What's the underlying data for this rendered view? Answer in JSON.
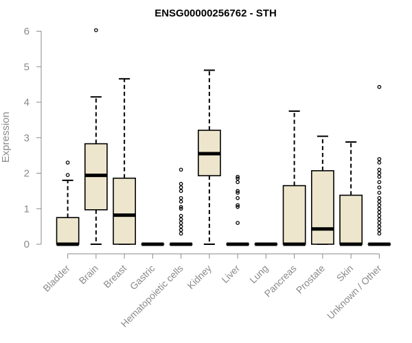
{
  "chart_data": {
    "type": "boxplot",
    "title": "ENSG00000256762 - STH",
    "xlabel": "",
    "ylabel": "Expression",
    "ylim": [
      0,
      6
    ],
    "yticks": [
      0,
      1,
      2,
      3,
      4,
      5,
      6
    ],
    "grid": false,
    "colors": {
      "box_fill": "#ede6cd",
      "stroke": "#000000",
      "axis": "#8a8a8a"
    },
    "categories": [
      "Bladder",
      "Brain",
      "Breast",
      "Gastric",
      "Hematopoietic cells",
      "Kidney",
      "Liver",
      "Lung",
      "Pancreas",
      "Prostate",
      "Skin",
      "Unknown / Other"
    ],
    "boxes": [
      {
        "category": "Bladder",
        "min": 0,
        "q1": 0,
        "median": 0,
        "q3": 0.75,
        "max": 1.8,
        "outliers": [
          1.95,
          2.3
        ]
      },
      {
        "category": "Brain",
        "min": 0,
        "q1": 0.97,
        "median": 1.94,
        "q3": 2.83,
        "max": 4.15,
        "outliers": [
          6.03
        ]
      },
      {
        "category": "Breast",
        "min": 0,
        "q1": 0,
        "median": 0.82,
        "q3": 1.86,
        "max": 4.66,
        "outliers": []
      },
      {
        "category": "Gastric",
        "min": 0,
        "q1": 0,
        "median": 0,
        "q3": 0,
        "max": 0,
        "outliers": []
      },
      {
        "category": "Hematopoietic cells",
        "min": 0,
        "q1": 0,
        "median": 0,
        "q3": 0,
        "max": 0,
        "outliers": [
          0.3,
          0.4,
          0.5,
          0.6,
          0.7,
          0.8,
          1.0,
          1.05,
          1.2,
          1.3,
          1.5,
          1.6,
          1.7,
          2.1
        ]
      },
      {
        "category": "Kidney",
        "min": 0,
        "q1": 1.93,
        "median": 2.55,
        "q3": 3.21,
        "max": 4.9,
        "outliers": []
      },
      {
        "category": "Liver",
        "min": 0,
        "q1": 0,
        "median": 0,
        "q3": 0,
        "max": 0,
        "outliers": [
          0.6,
          1.05,
          1.1,
          1.3,
          1.45,
          1.5,
          1.75,
          1.85,
          1.9
        ]
      },
      {
        "category": "Lung",
        "min": 0,
        "q1": 0,
        "median": 0,
        "q3": 0,
        "max": 0,
        "outliers": []
      },
      {
        "category": "Pancreas",
        "min": 0,
        "q1": 0,
        "median": 0,
        "q3": 1.65,
        "max": 3.75,
        "outliers": []
      },
      {
        "category": "Prostate",
        "min": 0,
        "q1": 0,
        "median": 0.43,
        "q3": 2.07,
        "max": 3.04,
        "outliers": []
      },
      {
        "category": "Skin",
        "min": 0,
        "q1": 0,
        "median": 0,
        "q3": 1.38,
        "max": 2.88,
        "outliers": []
      },
      {
        "category": "Unknown / Other",
        "min": 0,
        "q1": 0,
        "median": 0,
        "q3": 0,
        "max": 0,
        "outliers": [
          0.3,
          0.4,
          0.5,
          0.6,
          0.7,
          0.8,
          0.9,
          1.0,
          1.1,
          1.2,
          1.3,
          1.45,
          1.6,
          1.75,
          1.9,
          2.0,
          2.1,
          2.3,
          2.4,
          4.43
        ]
      }
    ]
  }
}
